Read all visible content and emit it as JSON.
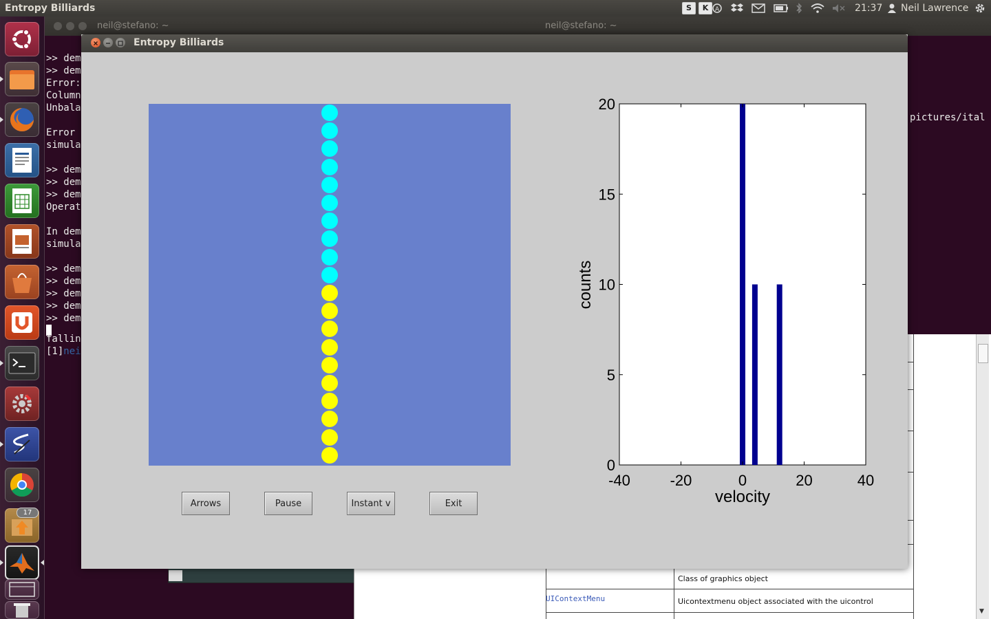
{
  "top_panel": {
    "app_title": "Entropy Billiards",
    "indicators": [
      "S",
      "K"
    ],
    "time": "21:37",
    "user": "Neil Lawrence"
  },
  "launcher": {
    "items": [
      "ubuntu-logo-icon",
      "files-icon",
      "firefox-icon",
      "writer-icon",
      "calc-icon",
      "impress-icon",
      "software-center-icon",
      "ubuntu-one-icon",
      "terminal-icon",
      "settings-icon",
      "synaptic-icon",
      "chrome-icon",
      "update-manager-icon",
      "matlab-icon",
      "workspace-icon",
      "trash-icon"
    ],
    "update_badge": "17"
  },
  "background": {
    "terminal1_title": "neil@stefano: ~",
    "terminal2_title": "neil@stefano: ~",
    "terminal_lines": [
      ">> dem",
      ">> dem",
      "Error:",
      "Column",
      "Unbala",
      "",
      "Error ",
      "simula",
      "",
      ">> dem",
      ">> dem",
      ">> dem",
      "Operat",
      "",
      "In dem",
      "simula",
      "",
      ">> dem",
      ">> dem",
      ">> dem",
      ">> dem",
      ">> dem"
    ],
    "terminal_tail1": "fallin",
    "terminal_tail2_prefix": "[1]",
    "terminal_tail2_link": "nei",
    "right_terminal_text": "pictures/ital",
    "doc_rows": [
      {
        "left": "",
        "right": "Class of graphics object"
      },
      {
        "left": "UIContextMenu",
        "right": "Uicontextmenu object associated with the uicontrol"
      }
    ]
  },
  "window": {
    "title": "Entropy Billiards",
    "buttons": {
      "arrows": "Arrows",
      "pause": "Pause",
      "instant": "Instant v",
      "exit": "Exit"
    },
    "balls": {
      "cyan_count": 10,
      "yellow_count": 10,
      "cyan_color": "#00ffff",
      "yellow_color": "#ffff00",
      "field_color": "#6880cc"
    }
  },
  "chart_data": {
    "type": "bar",
    "xlabel": "velocity",
    "ylabel": "counts",
    "xlim": [
      -40,
      40
    ],
    "ylim": [
      0,
      20
    ],
    "xticks": [
      "-40",
      "-20",
      "0",
      "20",
      "40"
    ],
    "yticks": [
      "0",
      "5",
      "10",
      "15",
      "20"
    ],
    "bars": [
      {
        "x": 0,
        "value": 20
      },
      {
        "x": 4,
        "value": 10
      },
      {
        "x": 12,
        "value": 10
      }
    ],
    "bar_color": "#00008f"
  }
}
